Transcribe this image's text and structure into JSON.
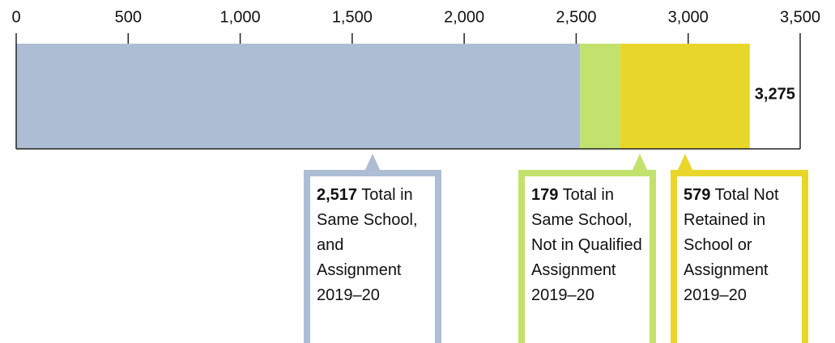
{
  "chart_data": {
    "type": "stacked-bar",
    "orientation": "horizontal",
    "xlim": [
      0,
      3500
    ],
    "xticks": [
      0,
      500,
      {
        "value": 1000,
        "label": "1,000"
      },
      {
        "value": 1500,
        "label": "1,500"
      },
      {
        "value": 2000,
        "label": "2,000"
      },
      {
        "value": 2500,
        "label": "2,500"
      },
      {
        "value": 3000,
        "label": "3,000"
      },
      {
        "value": 3500,
        "label": "3,500"
      }
    ],
    "series": [
      {
        "name": "Total in Same School, and Assignment 2019–20",
        "color": "#adbdd4",
        "values": [
          2517
        ],
        "value_labels": [
          "2,517"
        ]
      },
      {
        "name": "Total in Same School, Not in Qualified Assignment 2019–20",
        "color": "#c3e26d",
        "values": [
          179
        ],
        "value_labels": [
          "179"
        ]
      },
      {
        "name": "Total Not Retained in School or Assignment 2019–20",
        "color": "#e8d62a",
        "values": [
          579
        ],
        "value_labels": [
          "579"
        ]
      }
    ],
    "total": {
      "value": 3275,
      "label": "3,275"
    }
  }
}
